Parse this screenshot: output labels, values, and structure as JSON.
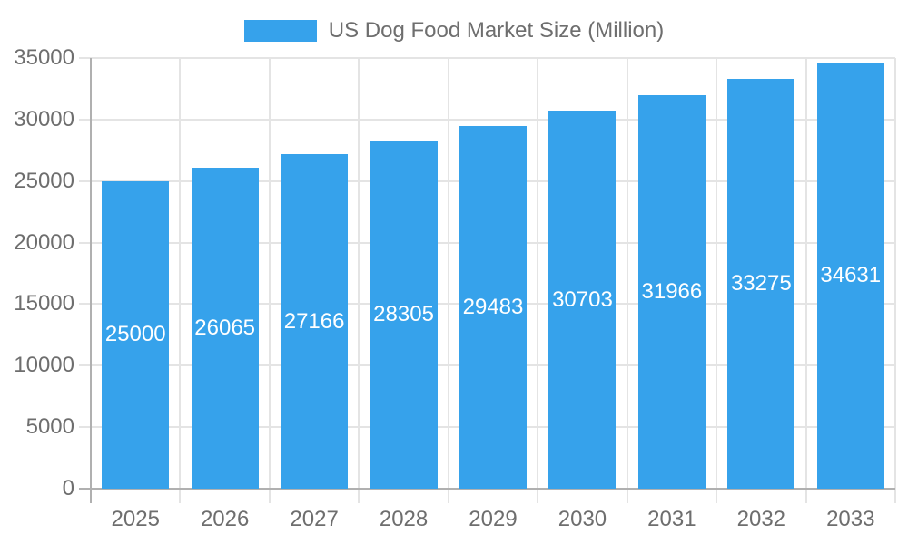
{
  "legend": {
    "label": "US Dog Food Market Size (Million)"
  },
  "chart_data": {
    "type": "bar",
    "title": "US Dog Food Market Size (Million)",
    "series_name": "US Dog Food Market Size (Million)",
    "categories": [
      "2025",
      "2026",
      "2027",
      "2028",
      "2029",
      "2030",
      "2031",
      "2032",
      "2033"
    ],
    "values": [
      25000,
      26065,
      27166,
      28305,
      29483,
      30703,
      31966,
      33275,
      34631
    ],
    "value_labels": [
      "25000",
      "26065",
      "27166",
      "28305",
      "29483",
      "30703",
      "31966",
      "33275",
      "34631"
    ],
    "xlabel": "",
    "ylabel": "",
    "ylim": [
      0,
      35000
    ],
    "y_ticks": [
      0,
      5000,
      10000,
      15000,
      20000,
      25000,
      30000,
      35000
    ],
    "grid": true,
    "legend_position": "top-center",
    "value_label_position": "inside-center",
    "colors": {
      "bar": "#36A2EB",
      "value_label": "#ffffff",
      "axis_text": "#6e6e6e",
      "grid_line": "#e4e4e4",
      "axis_line": "#b0b0b0",
      "background": "#ffffff"
    }
  }
}
